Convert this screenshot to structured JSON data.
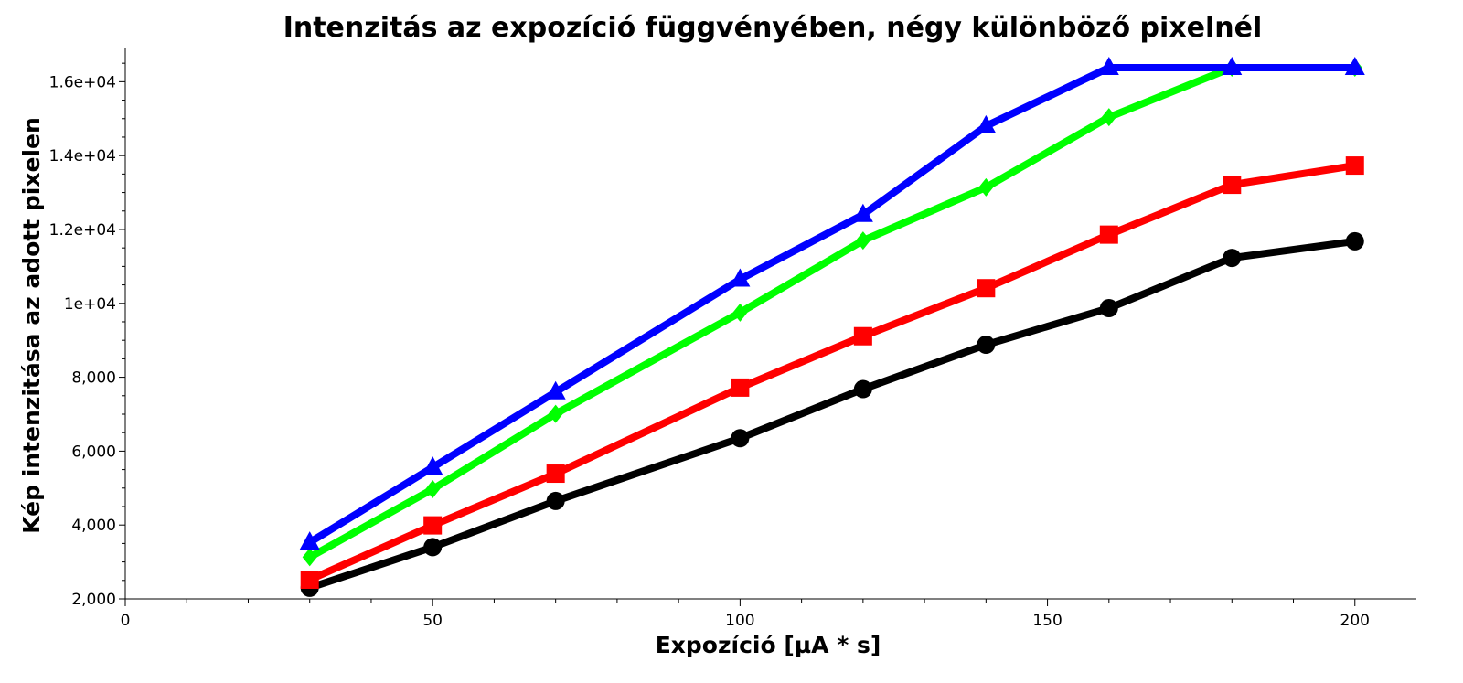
{
  "chart_data": {
    "type": "line",
    "title": "Intenzitás az expozíció függvényében, négy különböző pixelnél",
    "xlabel": "Expozíció [µA * s]",
    "ylabel": "Kép intenzitása az adott pixelen",
    "xlim": [
      0,
      210
    ],
    "ylim": [
      2000,
      16900
    ],
    "x_ticks": [
      0,
      50,
      100,
      150,
      200
    ],
    "x_tick_labels": [
      "0",
      "50",
      "100",
      "150",
      "200"
    ],
    "y_ticks": [
      2000,
      4000,
      6000,
      8000,
      10000,
      12000,
      14000,
      16000
    ],
    "y_tick_labels": [
      "2,000",
      "4,000",
      "6,000",
      "8,000",
      "1e+04",
      "1.2e+04",
      "1.4e+04",
      "1.6e+04"
    ],
    "grid": false,
    "legend": "none",
    "series": [
      {
        "color": "#000000",
        "marker": "circle",
        "x": [
          30,
          50,
          70,
          100,
          120,
          140,
          160,
          180,
          200
        ],
        "values": [
          2300,
          3400,
          4650,
          6350,
          7680,
          8880,
          9870,
          11230,
          11680
        ]
      },
      {
        "color": "#ff0000",
        "marker": "square",
        "x": [
          30,
          50,
          70,
          100,
          120,
          140,
          160,
          180,
          200
        ],
        "values": [
          2520,
          3990,
          5390,
          7720,
          9110,
          10410,
          11860,
          13210,
          13730
        ]
      },
      {
        "color": "#00ff00",
        "marker": "diamond",
        "x": [
          30,
          50,
          70,
          100,
          120,
          140,
          160,
          180,
          200
        ],
        "values": [
          3130,
          4970,
          7010,
          9750,
          11700,
          13140,
          15040,
          16380,
          16380
        ]
      },
      {
        "color": "#0000ff",
        "marker": "triangle",
        "x": [
          30,
          50,
          70,
          100,
          120,
          140,
          160,
          180,
          200
        ],
        "values": [
          3530,
          5560,
          7600,
          10650,
          12400,
          14800,
          16380,
          16380,
          16380
        ]
      }
    ]
  }
}
